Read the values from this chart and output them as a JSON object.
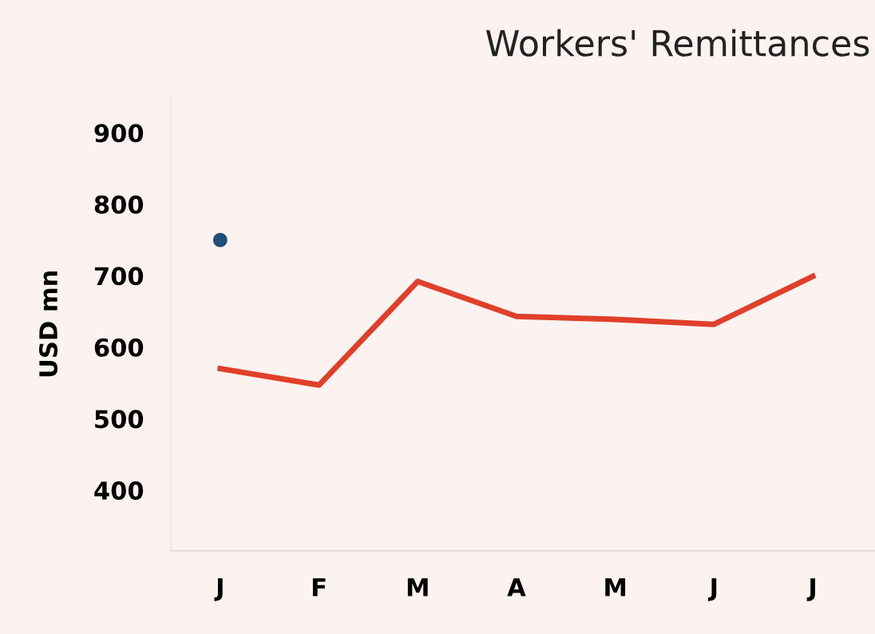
{
  "chart_data": {
    "type": "line",
    "title": "Workers' Remittances",
    "ylabel": "USD mn",
    "categories": [
      "J",
      "F",
      "M",
      "A",
      "M",
      "J",
      "J"
    ],
    "series": [
      {
        "color": "#e0402a",
        "values": [
          570,
          547,
          692,
          643,
          639,
          632,
          699
        ]
      },
      {
        "type": "scatter",
        "color": "#1f4e79",
        "x": [
          "J"
        ],
        "values": [
          750
        ]
      }
    ],
    "ylim": [
      315,
      950
    ],
    "yticks": [
      400,
      500,
      600,
      700,
      800,
      900
    ],
    "grid": false,
    "legend": false
  }
}
